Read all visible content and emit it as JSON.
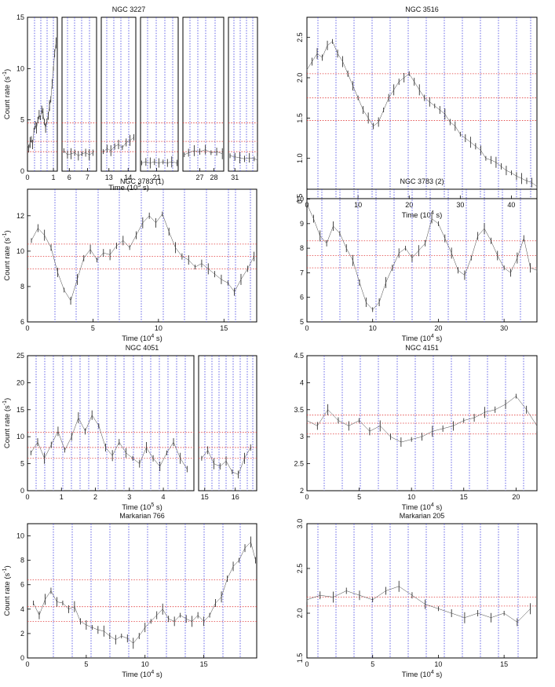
{
  "chart_data": [
    {
      "type": "line",
      "title": "NGC 3227",
      "xlabel": "Time (10^5 s)",
      "ylabel": "Count rate (s^-1)",
      "ylim": [
        0,
        15
      ],
      "yticks": [
        "0",
        "5",
        "10",
        "15"
      ],
      "segments": [
        {
          "xlim": [
            0,
            1.15
          ],
          "xticks": [
            "0",
            "1"
          ],
          "x": [
            0.0,
            0.05,
            0.1,
            0.15,
            0.2,
            0.25,
            0.3,
            0.35,
            0.4,
            0.45,
            0.5,
            0.55,
            0.6,
            0.65,
            0.7,
            0.75,
            0.8,
            0.85,
            0.9,
            0.95,
            1.0,
            1.05,
            1.1
          ],
          "y": [
            2.5,
            2.2,
            2.8,
            3.1,
            2.6,
            4.0,
            4.5,
            4.2,
            5.0,
            5.5,
            5.2,
            6.0,
            5.6,
            4.8,
            4.2,
            4.9,
            5.4,
            6.4,
            7.0,
            8.5,
            10.0,
            11.5,
            12.5
          ]
        },
        {
          "xlim": [
            5.6,
            7.5
          ],
          "xticks": [
            "6",
            "7"
          ],
          "x": [
            5.7,
            5.9,
            6.1,
            6.3,
            6.5,
            6.7,
            6.9,
            7.1,
            7.3
          ],
          "y": [
            2.0,
            1.6,
            1.7,
            1.8,
            1.5,
            1.7,
            1.8,
            1.6,
            1.8
          ]
        },
        {
          "xlim": [
            12.6,
            14.4
          ],
          "xticks": [
            "13",
            "14"
          ],
          "x": [
            12.7,
            12.9,
            13.1,
            13.3,
            13.5,
            13.7,
            13.9,
            14.1,
            14.3
          ],
          "y": [
            1.9,
            2.2,
            2.0,
            2.4,
            2.6,
            2.3,
            2.8,
            3.0,
            3.3
          ]
        },
        {
          "xlim": [
            19.5,
            23.0
          ],
          "xticks": [
            "21"
          ],
          "x": [
            19.6,
            20.0,
            20.4,
            20.8,
            21.2,
            21.6,
            22.0,
            22.4,
            22.9
          ],
          "y": [
            0.8,
            0.9,
            0.8,
            0.9,
            0.8,
            0.9,
            0.8,
            0.9,
            0.8
          ]
        },
        {
          "xlim": [
            25.8,
            28.7
          ],
          "xticks": [
            "27",
            "28"
          ],
          "x": [
            25.9,
            26.2,
            26.6,
            27.0,
            27.4,
            27.8,
            28.2,
            28.6
          ],
          "y": [
            1.6,
            1.8,
            2.0,
            1.9,
            2.1,
            1.8,
            1.9,
            1.7
          ]
        },
        {
          "xlim": [
            30.6,
            32.4
          ],
          "xticks": [
            "31"
          ],
          "x": [
            30.7,
            31.0,
            31.3,
            31.6,
            31.9,
            32.2,
            32.4
          ],
          "y": [
            1.5,
            1.4,
            1.3,
            1.2,
            1.3,
            1.2,
            1.1
          ]
        }
      ],
      "hlines": [
        4.7,
        2.9,
        1.9
      ]
    },
    {
      "type": "line",
      "title": "NGC 3516",
      "xlabel": "Time (10^4 s)",
      "ylabel": "",
      "xlim": [
        0,
        45
      ],
      "ylim": [
        0.5,
        2.75
      ],
      "xticks": [
        "0",
        "10",
        "20",
        "30",
        "40"
      ],
      "yticks": [
        "0.5",
        "1.0",
        "1.5",
        "2.0",
        "2.5"
      ],
      "x": [
        0,
        1,
        2,
        3,
        4,
        5,
        6,
        7,
        8,
        9,
        10,
        11,
        12,
        13,
        14,
        15,
        16,
        17,
        18,
        19,
        20,
        21,
        22,
        23,
        24,
        25,
        26,
        27,
        28,
        29,
        30,
        31,
        32,
        33,
        34,
        35,
        36,
        37,
        38,
        39,
        40,
        41,
        42,
        43,
        44,
        45
      ],
      "y": [
        2.1,
        2.2,
        2.3,
        2.25,
        2.4,
        2.45,
        2.3,
        2.2,
        2.05,
        1.9,
        1.75,
        1.6,
        1.5,
        1.4,
        1.45,
        1.6,
        1.75,
        1.85,
        1.95,
        2.0,
        2.05,
        1.95,
        1.85,
        1.75,
        1.7,
        1.65,
        1.6,
        1.55,
        1.45,
        1.4,
        1.3,
        1.25,
        1.2,
        1.15,
        1.1,
        1.0,
        0.98,
        0.95,
        0.9,
        0.85,
        0.82,
        0.78,
        0.75,
        0.72,
        0.7,
        0.65
      ],
      "hlines": [
        2.05,
        1.75,
        1.47
      ]
    },
    {
      "type": "line",
      "title": "NGC 3783 (1)",
      "xlabel": "Time (10^4 s)",
      "ylabel": "Count rate (s^-1)",
      "xlim": [
        0,
        17.5
      ],
      "ylim": [
        6,
        13.5
      ],
      "xticks": [
        "0",
        "5",
        "10",
        "15"
      ],
      "yticks": [
        "6",
        "8",
        "10",
        "12"
      ],
      "x": [
        0.3,
        0.8,
        1.3,
        1.8,
        2.3,
        2.8,
        3.3,
        3.8,
        4.3,
        4.8,
        5.3,
        5.8,
        6.3,
        6.8,
        7.3,
        7.8,
        8.3,
        8.8,
        9.3,
        9.8,
        10.3,
        10.8,
        11.3,
        11.8,
        12.3,
        12.8,
        13.3,
        13.8,
        14.3,
        14.8,
        15.3,
        15.8,
        16.3,
        16.8,
        17.3
      ],
      "y": [
        10.6,
        11.3,
        10.9,
        10.2,
        8.8,
        7.8,
        7.2,
        8.4,
        9.6,
        10.1,
        9.5,
        9.9,
        9.8,
        10.3,
        10.6,
        10.2,
        10.9,
        11.6,
        12.0,
        11.6,
        12.1,
        11.1,
        10.2,
        9.7,
        9.5,
        9.1,
        9.3,
        9.0,
        8.7,
        8.4,
        8.2,
        7.7,
        8.4,
        9.0,
        9.7
      ],
      "hlines": [
        10.4,
        9.7,
        9.0
      ]
    },
    {
      "type": "line",
      "title": "NGC 3783 (2)",
      "xlabel": "Time (10^4 s)",
      "ylabel": "",
      "xlim": [
        0,
        35
      ],
      "ylim": [
        5,
        10.4
      ],
      "xticks": [
        "0",
        "10",
        "20",
        "30"
      ],
      "yticks": [
        "5",
        "6",
        "7",
        "8",
        "9",
        "10"
      ],
      "x": [
        0,
        1,
        2,
        3,
        4,
        5,
        6,
        7,
        8,
        9,
        10,
        11,
        12,
        13,
        14,
        15,
        16,
        17,
        18,
        19,
        20,
        21,
        22,
        23,
        24,
        25,
        26,
        27,
        28,
        29,
        30,
        31,
        32,
        33,
        34,
        35
      ],
      "y": [
        9.8,
        9.2,
        8.5,
        8.2,
        8.9,
        8.6,
        8.0,
        7.5,
        6.6,
        5.8,
        5.5,
        5.8,
        6.6,
        7.2,
        7.8,
        8.0,
        7.6,
        7.9,
        8.2,
        9.2,
        9.0,
        8.4,
        7.8,
        7.1,
        6.9,
        7.6,
        8.5,
        8.8,
        8.3,
        7.7,
        7.2,
        7.0,
        7.6,
        8.4,
        7.2,
        7.1
      ],
      "hlines": [
        8.3,
        7.7,
        7.2
      ]
    },
    {
      "type": "line",
      "title": "NGC 4051",
      "xlabel": "Time (10^5 s)",
      "ylabel": "Count rate (s^-1)",
      "ylim": [
        0,
        25
      ],
      "yticks": [
        "0",
        "5",
        "10",
        "15",
        "20",
        "25"
      ],
      "segments": [
        {
          "xlim": [
            0,
            4.9
          ],
          "xticks": [
            "0",
            "1",
            "2",
            "3",
            "4"
          ],
          "x": [
            0.1,
            0.3,
            0.5,
            0.7,
            0.9,
            1.1,
            1.3,
            1.5,
            1.7,
            1.9,
            2.1,
            2.3,
            2.5,
            2.7,
            2.9,
            3.1,
            3.3,
            3.5,
            3.7,
            3.9,
            4.1,
            4.3,
            4.5,
            4.7
          ],
          "y": [
            7.0,
            9.0,
            6.0,
            8.5,
            11.0,
            7.5,
            10.0,
            13.5,
            11.0,
            14.0,
            12.0,
            8.0,
            6.5,
            9.0,
            7.0,
            6.0,
            5.0,
            8.0,
            6.0,
            4.5,
            7.0,
            9.0,
            6.0,
            4.0
          ]
        },
        {
          "xlim": [
            14.8,
            16.7
          ],
          "xticks": [
            "15",
            "16"
          ],
          "x": [
            14.9,
            15.1,
            15.3,
            15.5,
            15.7,
            15.9,
            16.1,
            16.3,
            16.5
          ],
          "y": [
            6.0,
            7.5,
            5.0,
            4.5,
            5.5,
            3.5,
            3.0,
            6.0,
            8.0
          ]
        }
      ],
      "hlines": [
        10.8,
        8.0,
        6.0
      ]
    },
    {
      "type": "line",
      "title": "NGC 4151",
      "xlabel": "Time (10^4 s)",
      "ylabel": "",
      "xlim": [
        0,
        22
      ],
      "ylim": [
        2,
        4.5
      ],
      "xticks": [
        "0",
        "5",
        "10",
        "15",
        "20"
      ],
      "yticks": [
        "2",
        "2.5",
        "3",
        "3.5",
        "4",
        "4.5"
      ],
      "x": [
        0,
        1,
        2,
        3,
        4,
        5,
        6,
        7,
        8,
        9,
        10,
        11,
        12,
        13,
        14,
        15,
        16,
        17,
        18,
        19,
        20,
        21,
        22
      ],
      "y": [
        3.3,
        3.2,
        3.5,
        3.3,
        3.2,
        3.3,
        3.1,
        3.2,
        3.0,
        2.9,
        2.95,
        3.0,
        3.1,
        3.15,
        3.2,
        3.3,
        3.35,
        3.45,
        3.5,
        3.6,
        3.75,
        3.5,
        3.2
      ],
      "hlines": [
        3.4,
        3.25,
        3.05
      ]
    },
    {
      "type": "line",
      "title": "Markarian 766",
      "xlabel": "Time (10^4 s)",
      "ylabel": "Count rate (s^-1)",
      "xlim": [
        0,
        19.5
      ],
      "ylim": [
        0,
        11
      ],
      "xticks": [
        "0",
        "5",
        "10",
        "15"
      ],
      "yticks": [
        "0",
        "2",
        "4",
        "6",
        "8",
        "10"
      ],
      "x": [
        0.5,
        1.0,
        1.5,
        2.0,
        2.5,
        3.0,
        3.5,
        4.0,
        4.5,
        5.0,
        5.5,
        6.0,
        6.5,
        7.0,
        7.5,
        8.0,
        8.5,
        9.0,
        9.5,
        10.0,
        10.5,
        11.0,
        11.5,
        12.0,
        12.5,
        13.0,
        13.5,
        14.0,
        14.5,
        15.0,
        15.5,
        16.0,
        16.5,
        17.0,
        17.5,
        18.0,
        18.5,
        19.0,
        19.4
      ],
      "y": [
        4.5,
        3.5,
        4.8,
        5.5,
        4.6,
        4.5,
        4.0,
        4.2,
        3.0,
        2.7,
        2.5,
        2.3,
        2.2,
        1.8,
        1.5,
        1.8,
        1.6,
        1.2,
        1.8,
        2.5,
        3.0,
        3.5,
        4.0,
        3.2,
        3.0,
        3.5,
        3.2,
        3.0,
        3.5,
        3.0,
        3.5,
        4.5,
        5.0,
        6.5,
        7.5,
        8.0,
        9.0,
        9.5,
        8.0
      ],
      "hlines": [
        6.4,
        4.2,
        3.0
      ]
    },
    {
      "type": "line",
      "title": "Markarian 205",
      "xlabel": "Time (10^4 s)",
      "ylabel": "",
      "xlim": [
        0,
        17.5
      ],
      "ylim": [
        1.5,
        3.0
      ],
      "xticks": [
        "0",
        "5",
        "10",
        "15"
      ],
      "yticks": [
        "1.5",
        "2.0",
        "2.5",
        "3.0"
      ],
      "x": [
        0,
        1,
        2,
        3,
        4,
        5,
        6,
        7,
        8,
        9,
        10,
        11,
        12,
        13,
        14,
        15,
        16,
        17
      ],
      "y": [
        2.15,
        2.2,
        2.18,
        2.25,
        2.2,
        2.15,
        2.25,
        2.3,
        2.2,
        2.1,
        2.05,
        2.0,
        1.95,
        2.0,
        1.95,
        2.0,
        1.9,
        2.05
      ],
      "hlines": [
        2.18,
        2.08
      ]
    }
  ],
  "styles": {
    "trace_color": "#1a1a1a",
    "vline_color": "#3a3ae0",
    "hline_color": "#e03a3a",
    "frame_color": "#000000"
  }
}
